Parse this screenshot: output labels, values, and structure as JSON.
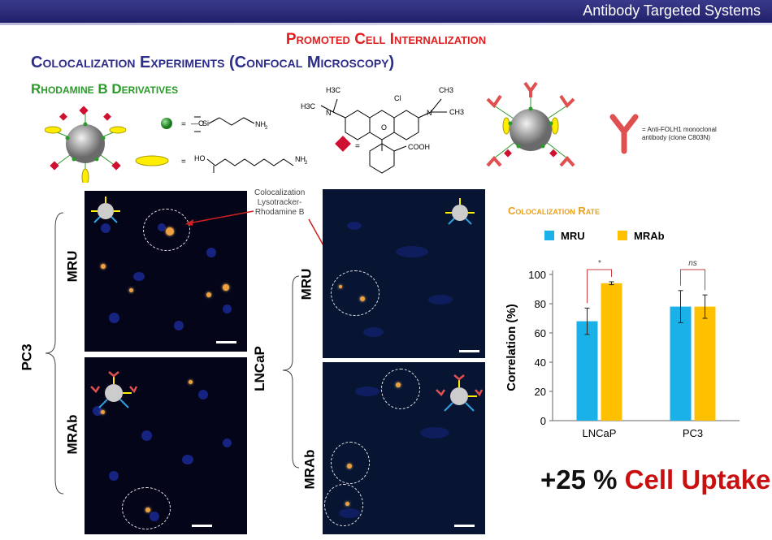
{
  "header": {
    "title": "Antibody Targeted Systems"
  },
  "slide": {
    "title": "Promoted Cell Internalization",
    "subtitle1": "Colocalization Experiments (Confocal Microscopy)",
    "subtitle2": "Rhodamine B Derivatives"
  },
  "legend": {
    "antibody": "= Anti-FOLH1 monoclonal antibody (clone C803N)",
    "eq": "=",
    "silane_label": "NH",
    "acid_label_ho": "HO",
    "acid_label_nh": "NH",
    "rhod_cl": "Cl",
    "rhod_h3c_top": "H3C",
    "rhod_h3c_left": "H3C",
    "rhod_ch3_top": "CH3",
    "rhod_ch3_right": "CH3",
    "rhod_n_left": "N",
    "rhod_n_right": "N",
    "rhod_cooh": "COOH"
  },
  "labels": {
    "pc3": "PC3",
    "lncap": "LNCaP",
    "mru": "MRU",
    "mrab": "MRAb",
    "coloc_annotation": [
      "Colocalization",
      "Lysotracker-",
      "Rhodamine B"
    ]
  },
  "uptake": {
    "value": "+25 %",
    "text": "Cell Uptake"
  },
  "colors": {
    "mru": "#1ab0e8",
    "mrab": "#ffc000",
    "bracket": "#c84040"
  },
  "chart_data": {
    "type": "bar",
    "title": "Colocalization Rate",
    "ylabel": "Correlation (%)",
    "xlabel": "",
    "categories": [
      "LNCaP",
      "PC3"
    ],
    "ylim": [
      0,
      100
    ],
    "yticks": [
      0,
      20,
      40,
      60,
      80,
      100
    ],
    "series": [
      {
        "name": "MRU",
        "values": [
          68,
          78
        ],
        "errors": [
          9,
          11
        ]
      },
      {
        "name": "MRAb",
        "values": [
          94,
          78
        ],
        "errors": [
          1,
          8
        ]
      }
    ],
    "annotations": [
      "*",
      "ns"
    ],
    "legend": "top"
  }
}
